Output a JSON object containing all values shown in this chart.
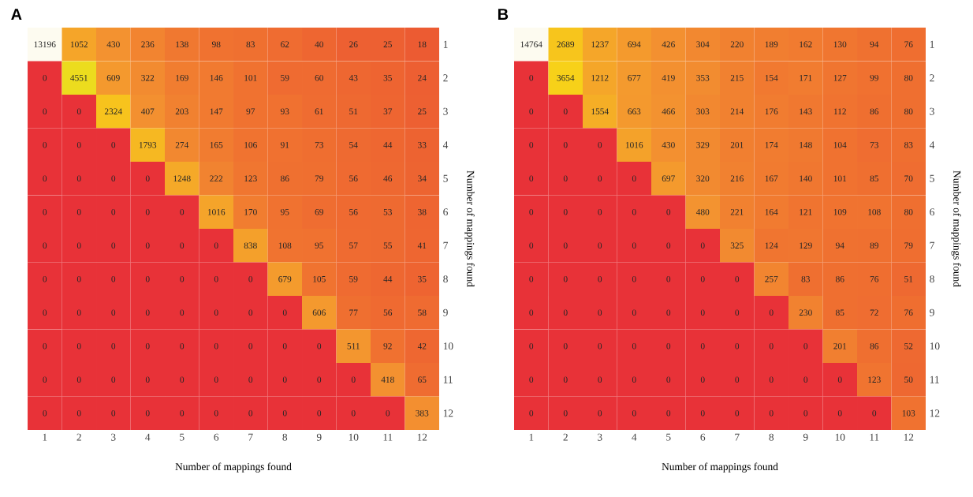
{
  "chart_data": [
    {
      "type": "heatmap",
      "title": "A",
      "xlabel": "Number of mappings found",
      "ylabel": "Number of mappings found",
      "data_labels": true,
      "categories": [
        "1",
        "2",
        "3",
        "4",
        "5",
        "6",
        "7",
        "8",
        "9",
        "10",
        "11",
        "12"
      ],
      "y_categories": [
        "1",
        "2",
        "3",
        "4",
        "5",
        "6",
        "7",
        "8",
        "9",
        "10",
        "11",
        "12"
      ],
      "cells": [
        [
          13196,
          1052,
          430,
          236,
          138,
          98,
          83,
          62,
          40,
          26,
          25,
          18
        ],
        [
          0,
          4551,
          609,
          322,
          169,
          146,
          101,
          59,
          60,
          43,
          35,
          24
        ],
        [
          0,
          0,
          2324,
          407,
          203,
          147,
          97,
          93,
          61,
          51,
          37,
          25
        ],
        [
          0,
          0,
          0,
          1793,
          274,
          165,
          106,
          91,
          73,
          54,
          44,
          33
        ],
        [
          0,
          0,
          0,
          0,
          1248,
          222,
          123,
          86,
          79,
          56,
          46,
          34
        ],
        [
          0,
          0,
          0,
          0,
          0,
          1016,
          170,
          95,
          69,
          56,
          53,
          38
        ],
        [
          0,
          0,
          0,
          0,
          0,
          0,
          838,
          108,
          95,
          57,
          55,
          41
        ],
        [
          0,
          0,
          0,
          0,
          0,
          0,
          0,
          679,
          105,
          59,
          44,
          35
        ],
        [
          0,
          0,
          0,
          0,
          0,
          0,
          0,
          0,
          606,
          77,
          56,
          58
        ],
        [
          0,
          0,
          0,
          0,
          0,
          0,
          0,
          0,
          0,
          511,
          92,
          42
        ],
        [
          0,
          0,
          0,
          0,
          0,
          0,
          0,
          0,
          0,
          0,
          418,
          65
        ],
        [
          0,
          0,
          0,
          0,
          0,
          0,
          0,
          0,
          0,
          0,
          0,
          383
        ]
      ]
    },
    {
      "type": "heatmap",
      "title": "B",
      "xlabel": "Number of mappings found",
      "ylabel": "Number of mappings found",
      "data_labels": true,
      "categories": [
        "1",
        "2",
        "3",
        "4",
        "5",
        "6",
        "7",
        "8",
        "9",
        "10",
        "11",
        "12"
      ],
      "y_categories": [
        "1",
        "2",
        "3",
        "4",
        "5",
        "6",
        "7",
        "8",
        "9",
        "10",
        "11",
        "12"
      ],
      "cells": [
        [
          14764,
          2689,
          1237,
          694,
          426,
          304,
          220,
          189,
          162,
          130,
          94,
          76
        ],
        [
          0,
          3654,
          1212,
          677,
          419,
          353,
          215,
          154,
          171,
          127,
          99,
          80
        ],
        [
          0,
          0,
          1554,
          663,
          466,
          303,
          214,
          176,
          143,
          112,
          86,
          80
        ],
        [
          0,
          0,
          0,
          1016,
          430,
          329,
          201,
          174,
          148,
          104,
          73,
          83
        ],
        [
          0,
          0,
          0,
          0,
          697,
          320,
          216,
          167,
          140,
          101,
          85,
          70
        ],
        [
          0,
          0,
          0,
          0,
          0,
          480,
          221,
          164,
          121,
          109,
          108,
          80
        ],
        [
          0,
          0,
          0,
          0,
          0,
          0,
          325,
          124,
          129,
          94,
          89,
          79
        ],
        [
          0,
          0,
          0,
          0,
          0,
          0,
          0,
          257,
          83,
          86,
          76,
          51
        ],
        [
          0,
          0,
          0,
          0,
          0,
          0,
          0,
          0,
          230,
          85,
          72,
          76
        ],
        [
          0,
          0,
          0,
          0,
          0,
          0,
          0,
          0,
          0,
          201,
          86,
          52
        ],
        [
          0,
          0,
          0,
          0,
          0,
          0,
          0,
          0,
          0,
          0,
          123,
          50
        ],
        [
          0,
          0,
          0,
          0,
          0,
          0,
          0,
          0,
          0,
          0,
          0,
          103
        ]
      ]
    }
  ]
}
